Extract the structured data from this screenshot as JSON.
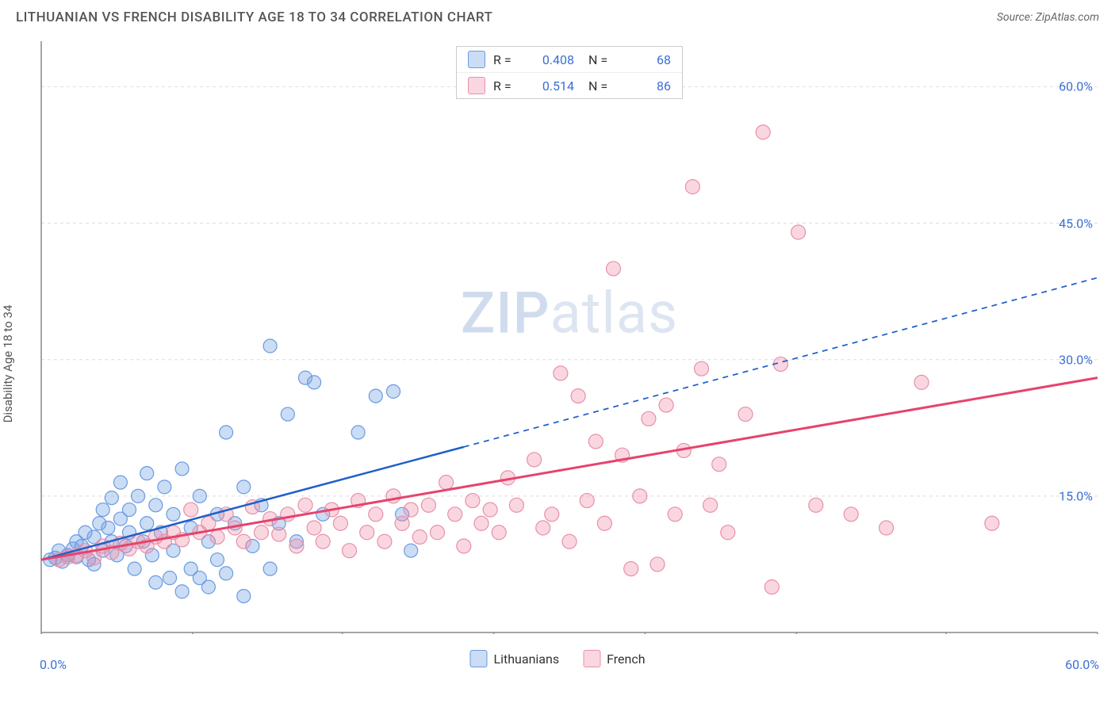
{
  "header": {
    "title": "LITHUANIAN VS FRENCH DISABILITY AGE 18 TO 34 CORRELATION CHART",
    "source_prefix": "Source: ",
    "source_name": "ZipAtlas.com"
  },
  "watermark": {
    "zip": "ZIP",
    "atlas": "atlas"
  },
  "axes": {
    "y_label": "Disability Age 18 to 34",
    "x_min": 0,
    "x_max": 60,
    "y_min": 0,
    "y_max": 65,
    "x_origin_label": "0.0%",
    "x_max_label": "60.0%",
    "y_ticks": [
      {
        "v": 15,
        "label": "15.0%"
      },
      {
        "v": 30,
        "label": "30.0%"
      },
      {
        "v": 45,
        "label": "45.0%"
      },
      {
        "v": 60,
        "label": "60.0%"
      }
    ],
    "x_tick_positions": [
      0,
      8.6,
      17.1,
      25.7,
      34.3,
      42.9,
      51.4,
      60
    ],
    "grid_color": "#dddddd",
    "axis_color": "#888888"
  },
  "series": [
    {
      "key": "lithuanians",
      "label": "Lithuanians",
      "R_label": "R =",
      "R": "0.408",
      "N_label": "N =",
      "N": "68",
      "fill": "rgba(117,163,230,0.38)",
      "stroke": "#6a9be0",
      "line_color": "#1f5fc9",
      "line_width": 2.5,
      "marker_r": 8.5,
      "trend": {
        "x1": 0,
        "y1": 8,
        "x_solid_end": 24,
        "x2": 60,
        "y2": 39
      },
      "points": [
        [
          0.5,
          8
        ],
        [
          0.8,
          8.2
        ],
        [
          1,
          9
        ],
        [
          1.2,
          7.8
        ],
        [
          1.5,
          8.5
        ],
        [
          1.8,
          9.2
        ],
        [
          2,
          10
        ],
        [
          2,
          8.3
        ],
        [
          2.3,
          9.5
        ],
        [
          2.5,
          11
        ],
        [
          2.7,
          8
        ],
        [
          3,
          10.5
        ],
        [
          3,
          7.5
        ],
        [
          3.3,
          12
        ],
        [
          3.5,
          9
        ],
        [
          3.5,
          13.5
        ],
        [
          3.8,
          11.5
        ],
        [
          4,
          10
        ],
        [
          4,
          14.8
        ],
        [
          4.3,
          8.5
        ],
        [
          4.5,
          12.5
        ],
        [
          4.5,
          16.5
        ],
        [
          4.8,
          9.5
        ],
        [
          5,
          13.5
        ],
        [
          5,
          11
        ],
        [
          5.3,
          7
        ],
        [
          5.5,
          15
        ],
        [
          5.8,
          10
        ],
        [
          6,
          12
        ],
        [
          6,
          17.5
        ],
        [
          6.3,
          8.5
        ],
        [
          6.5,
          14
        ],
        [
          6.5,
          5.5
        ],
        [
          6.8,
          11
        ],
        [
          7,
          16
        ],
        [
          7.3,
          6
        ],
        [
          7.5,
          13
        ],
        [
          7.5,
          9
        ],
        [
          8,
          18
        ],
        [
          8,
          4.5
        ],
        [
          8.5,
          11.5
        ],
        [
          8.5,
          7
        ],
        [
          9,
          6
        ],
        [
          9,
          15
        ],
        [
          9.5,
          10
        ],
        [
          9.5,
          5
        ],
        [
          10,
          13
        ],
        [
          10,
          8
        ],
        [
          10.5,
          22
        ],
        [
          10.5,
          6.5
        ],
        [
          11,
          12
        ],
        [
          11.5,
          4
        ],
        [
          11.5,
          16
        ],
        [
          12,
          9.5
        ],
        [
          12.5,
          14
        ],
        [
          13,
          7
        ],
        [
          13,
          31.5
        ],
        [
          13.5,
          12
        ],
        [
          14,
          24
        ],
        [
          14.5,
          10
        ],
        [
          15,
          28
        ],
        [
          15.5,
          27.5
        ],
        [
          16,
          13
        ],
        [
          18,
          22
        ],
        [
          19,
          26
        ],
        [
          20,
          26.5
        ],
        [
          20.5,
          13
        ],
        [
          21,
          9
        ]
      ]
    },
    {
      "key": "french",
      "label": "French",
      "R_label": "R =",
      "R": "0.514",
      "N_label": "N =",
      "N": "86",
      "fill": "rgba(240,140,165,0.35)",
      "stroke": "#e890a8",
      "line_color": "#e6436d",
      "line_width": 3,
      "marker_r": 9,
      "trend": {
        "x1": 0,
        "y1": 8,
        "x_solid_end": 60,
        "x2": 60,
        "y2": 28
      },
      "points": [
        [
          1,
          8
        ],
        [
          1.5,
          8.3
        ],
        [
          2,
          8.5
        ],
        [
          2.5,
          9
        ],
        [
          3,
          8.2
        ],
        [
          3.5,
          9.5
        ],
        [
          4,
          8.8
        ],
        [
          4.5,
          9.8
        ],
        [
          5,
          9.2
        ],
        [
          5.5,
          10
        ],
        [
          6,
          9.5
        ],
        [
          6.5,
          10.5
        ],
        [
          7,
          10
        ],
        [
          7.5,
          11
        ],
        [
          8,
          10.2
        ],
        [
          8.5,
          13.5
        ],
        [
          9,
          11
        ],
        [
          9.5,
          12
        ],
        [
          10,
          10.5
        ],
        [
          10.5,
          13
        ],
        [
          11,
          11.5
        ],
        [
          11.5,
          10
        ],
        [
          12,
          13.8
        ],
        [
          12.5,
          11
        ],
        [
          13,
          12.5
        ],
        [
          13.5,
          10.8
        ],
        [
          14,
          13
        ],
        [
          14.5,
          9.5
        ],
        [
          15,
          14
        ],
        [
          15.5,
          11.5
        ],
        [
          16,
          10
        ],
        [
          16.5,
          13.5
        ],
        [
          17,
          12
        ],
        [
          17.5,
          9
        ],
        [
          18,
          14.5
        ],
        [
          18.5,
          11
        ],
        [
          19,
          13
        ],
        [
          19.5,
          10
        ],
        [
          20,
          15
        ],
        [
          20.5,
          12
        ],
        [
          21,
          13.5
        ],
        [
          21.5,
          10.5
        ],
        [
          22,
          14
        ],
        [
          22.5,
          11
        ],
        [
          23,
          16.5
        ],
        [
          23.5,
          13
        ],
        [
          24,
          9.5
        ],
        [
          24.5,
          14.5
        ],
        [
          25,
          12
        ],
        [
          25.5,
          13.5
        ],
        [
          26,
          11
        ],
        [
          26.5,
          17
        ],
        [
          27,
          14
        ],
        [
          28,
          19
        ],
        [
          28.5,
          11.5
        ],
        [
          29,
          13
        ],
        [
          29.5,
          28.5
        ],
        [
          30,
          10
        ],
        [
          30.5,
          26
        ],
        [
          31,
          14.5
        ],
        [
          31.5,
          21
        ],
        [
          32,
          12
        ],
        [
          32.5,
          40
        ],
        [
          33,
          19.5
        ],
        [
          33.5,
          7
        ],
        [
          34,
          15
        ],
        [
          34.5,
          23.5
        ],
        [
          35,
          7.5
        ],
        [
          35.5,
          25
        ],
        [
          36,
          13
        ],
        [
          36.5,
          20
        ],
        [
          37,
          49
        ],
        [
          37.5,
          29
        ],
        [
          38,
          14
        ],
        [
          38.5,
          18.5
        ],
        [
          39,
          11
        ],
        [
          40,
          24
        ],
        [
          41,
          55
        ],
        [
          41.5,
          5
        ],
        [
          42,
          29.5
        ],
        [
          43,
          44
        ],
        [
          44,
          14
        ],
        [
          46,
          13
        ],
        [
          48,
          11.5
        ],
        [
          50,
          27.5
        ],
        [
          54,
          12
        ]
      ]
    }
  ],
  "bottom_legend": {
    "items": [
      {
        "key": "lithuanians",
        "label": "Lithuanians"
      },
      {
        "key": "french",
        "label": "French"
      }
    ]
  }
}
